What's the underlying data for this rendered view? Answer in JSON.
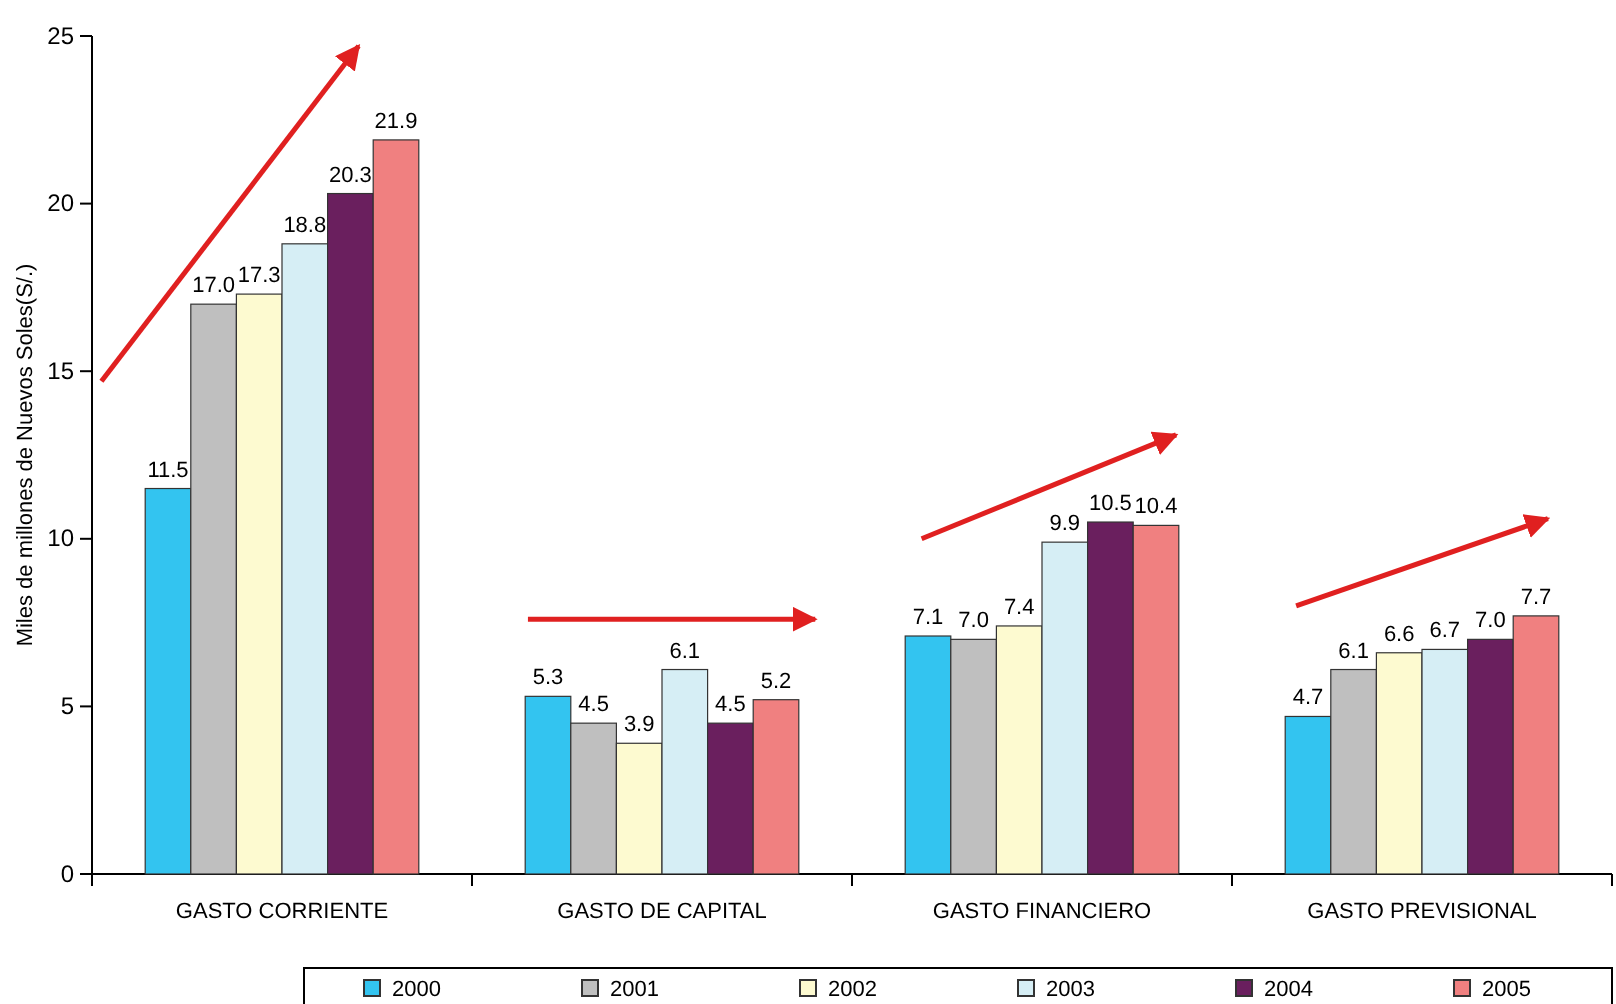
{
  "chart_data": {
    "type": "bar",
    "ylabel": "Miles de millones de Nuevos Soles(S/.)",
    "categories": [
      "GASTO CORRIENTE",
      "GASTO DE CAPITAL",
      "GASTO FINANCIERO",
      "GASTO PREVISIONAL"
    ],
    "series": [
      {
        "name": "2000",
        "color": "#33c4f0",
        "values": [
          11.5,
          5.3,
          7.1,
          4.7
        ],
        "value_labels": [
          "11.5",
          "5.3",
          "7.1",
          "4.7"
        ]
      },
      {
        "name": "2001",
        "color": "#bfbfbf",
        "values": [
          17.0,
          4.5,
          7.0,
          6.1
        ],
        "value_labels": [
          "17.0",
          "4.5",
          "7.0",
          "6.1"
        ]
      },
      {
        "name": "2002",
        "color": "#fdfad0",
        "values": [
          17.3,
          3.9,
          7.4,
          6.6
        ],
        "value_labels": [
          "17.3",
          "3.9",
          "7.4",
          "6.6"
        ]
      },
      {
        "name": "2003",
        "color": "#d6eef5",
        "values": [
          18.8,
          6.1,
          9.9,
          6.7
        ],
        "value_labels": [
          "18.8",
          "6.1",
          "9.9",
          "6.7"
        ]
      },
      {
        "name": "2004",
        "color": "#6a1f5e",
        "values": [
          20.3,
          4.5,
          10.5,
          7.0
        ],
        "value_labels": [
          "20.3",
          "4.5",
          "10.5",
          "7.0"
        ]
      },
      {
        "name": "2005",
        "color": "#f08080",
        "values": [
          21.9,
          5.2,
          10.4,
          7.7
        ],
        "value_labels": [
          "21.9",
          "5.2",
          "10.4",
          "7.7"
        ]
      }
    ],
    "ylim": [
      0,
      25
    ],
    "yticks": [
      0,
      5,
      10,
      15,
      20,
      25
    ],
    "legend": "bottom",
    "grid": false
  }
}
